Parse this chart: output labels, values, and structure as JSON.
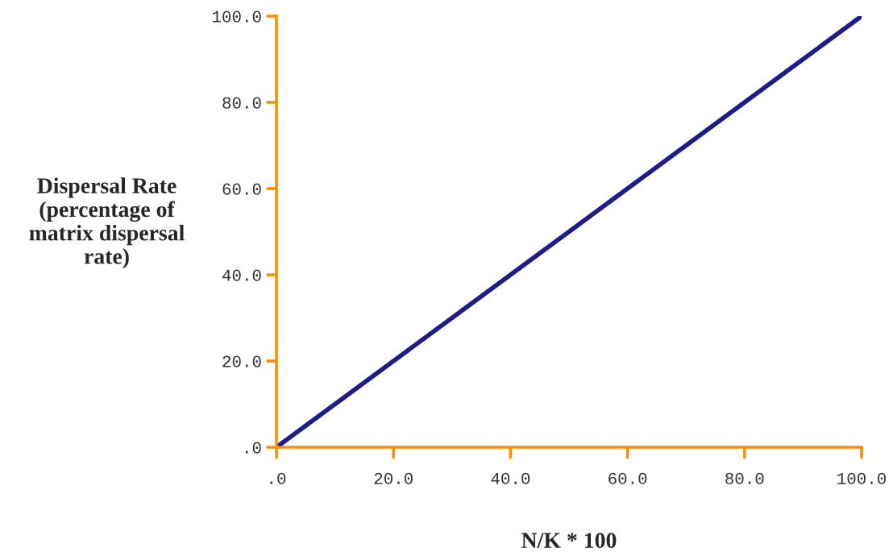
{
  "chart_data": {
    "type": "line",
    "xlabel": "N/K * 100",
    "ylabel": "Dispersal Rate\n(percentage of\nmatrix dispersal\nrate)",
    "x": [
      0,
      10,
      20,
      30,
      40,
      50,
      60,
      70,
      80,
      90,
      100
    ],
    "series": [
      {
        "color": "#1c1c8a",
        "values": [
          0,
          10,
          20,
          30,
          40,
          50,
          60,
          70,
          80,
          90,
          100
        ]
      }
    ],
    "xlim": [
      0,
      100
    ],
    "ylim": [
      0,
      100
    ],
    "xticks": [
      {
        "value": 0,
        "label": ".0"
      },
      {
        "value": 20,
        "label": "20.0"
      },
      {
        "value": 40,
        "label": "40.0"
      },
      {
        "value": 60,
        "label": "60.0"
      },
      {
        "value": 80,
        "label": "80.0"
      },
      {
        "value": 100,
        "label": "100.0"
      }
    ],
    "yticks": [
      {
        "value": 0,
        "label": ".0"
      },
      {
        "value": 20,
        "label": "20.0"
      },
      {
        "value": 40,
        "label": "40.0"
      },
      {
        "value": 60,
        "label": "60.0"
      },
      {
        "value": 80,
        "label": "80.0"
      },
      {
        "value": 100,
        "label": "100.0"
      }
    ],
    "grid": false,
    "marker": "none",
    "line_style": "solid"
  }
}
